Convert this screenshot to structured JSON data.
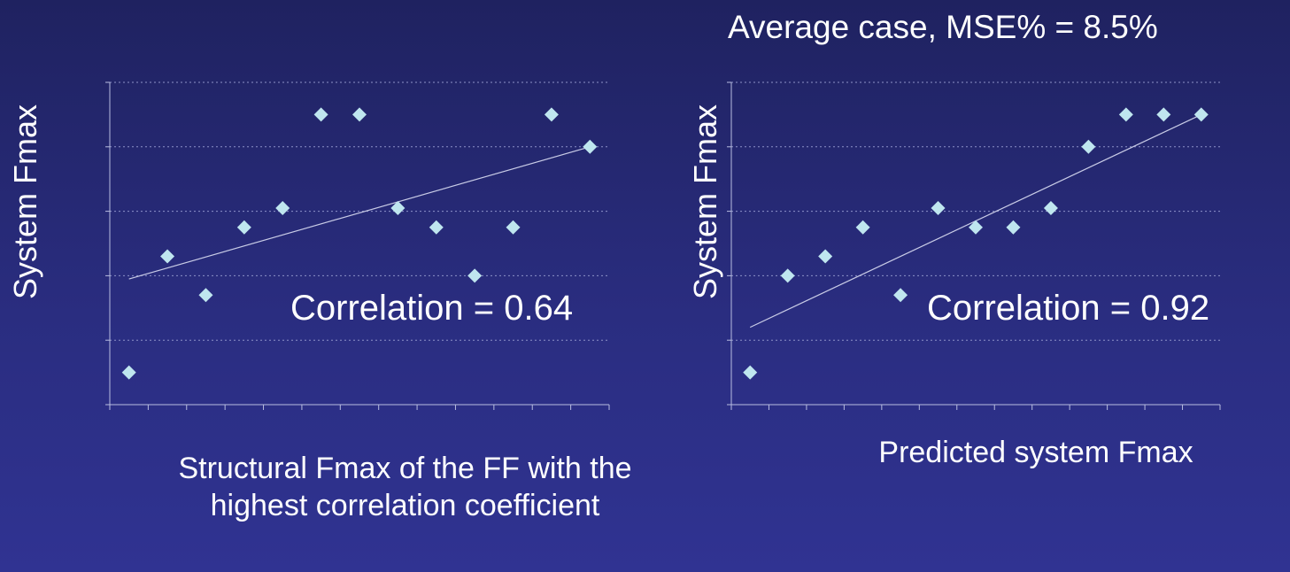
{
  "slide": {
    "title": "Average case, MSE% = 8.5%"
  },
  "colors": {
    "background": "#2a2d80",
    "marker": "#bfe6ef",
    "axis": "#b8bde0",
    "trendline": "#c8cbe6"
  },
  "chart_data": [
    {
      "type": "scatter",
      "ylabel": "System  Fmax",
      "xlabel": "Structural Fmax of  the FF with the highest correlation coefficient",
      "annotation": "Correlation = 0.64",
      "x": [
        1,
        2,
        3,
        4,
        5,
        6,
        7,
        8,
        9,
        10,
        11,
        12,
        13
      ],
      "y": [
        0.5,
        2.3,
        1.7,
        2.75,
        3.05,
        4.5,
        4.5,
        3.05,
        2.75,
        2.0,
        2.75,
        4.5,
        4.0
      ],
      "trendline": {
        "y_start": 1.95,
        "y_end": 4.0
      },
      "xlim": [
        0.5,
        13.5
      ],
      "ylim": [
        0,
        5
      ],
      "grid": true,
      "legend": "none"
    },
    {
      "type": "scatter",
      "ylabel": "System  Fmax",
      "xlabel": "Predicted system Fmax",
      "annotation": "Correlation = 0.92",
      "x": [
        1,
        2,
        3,
        4,
        5,
        6,
        7,
        8,
        9,
        10,
        11,
        12,
        13
      ],
      "y": [
        0.5,
        2.0,
        2.3,
        2.75,
        1.7,
        3.05,
        2.75,
        2.75,
        3.05,
        4.0,
        4.5,
        4.5,
        4.5
      ],
      "trendline": {
        "y_start": 1.2,
        "y_end": 4.5
      },
      "xlim": [
        0.5,
        13.5
      ],
      "ylim": [
        0,
        5
      ],
      "grid": true,
      "legend": "none"
    }
  ]
}
